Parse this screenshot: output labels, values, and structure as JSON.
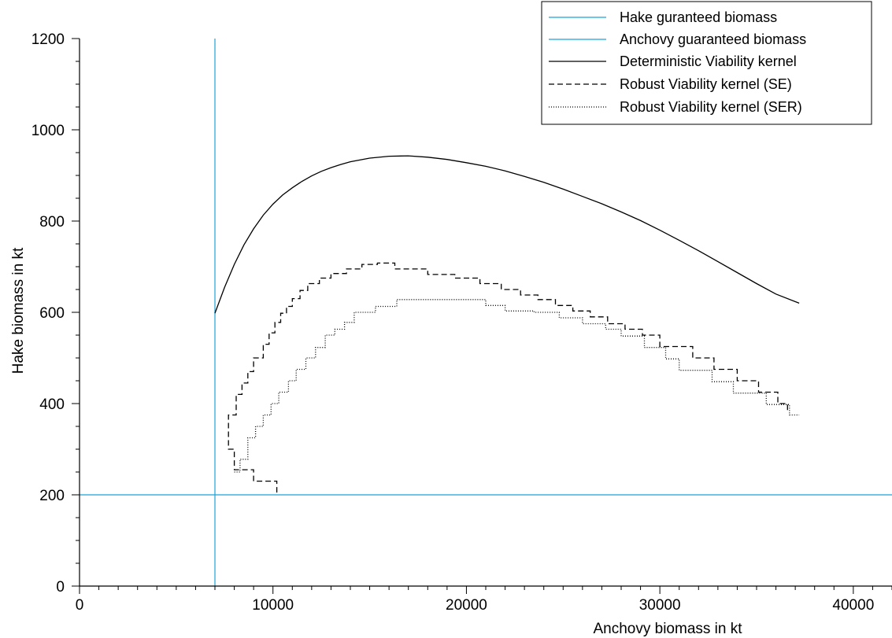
{
  "chart_data": {
    "type": "line",
    "title": "",
    "xlabel": "Anchovy biomass in kt",
    "ylabel": "Hake biomass in kt",
    "xlim": [
      0,
      42000
    ],
    "ylim": [
      0,
      1200
    ],
    "x_ticks": [
      0,
      10000,
      20000,
      30000,
      40000
    ],
    "x_tick_labels": [
      "0",
      "10000",
      "20000",
      "30000",
      "40000"
    ],
    "x_minor_step": 1000,
    "y_ticks": [
      0,
      200,
      400,
      600,
      800,
      1000,
      1200
    ],
    "y_tick_labels": [
      "0",
      "200",
      "400",
      "600",
      "800",
      "1000",
      "1200"
    ],
    "y_minor_step": 50,
    "grid": false,
    "legend_position": "top-right",
    "legend": [
      {
        "label": "Hake guranteed biomass",
        "color": "#1aa3d9",
        "style": "solid"
      },
      {
        "label": "Anchovy guaranteed biomass",
        "color": "#1aa3d9",
        "style": "solid"
      },
      {
        "label": "Deterministic Viability kernel",
        "color": "#000000",
        "style": "solid"
      },
      {
        "label": "Robust Viability kernel (SE)",
        "color": "#000000",
        "style": "dashed"
      },
      {
        "label": "Robust Viability kernel (SER)",
        "color": "#000000",
        "style": "dotted"
      }
    ],
    "hake_guaranteed_biomass": 200,
    "anchovy_guaranteed_biomass": 7000,
    "series": [
      {
        "name": "Deterministic Viability kernel",
        "style": "solid",
        "color": "#000000",
        "x": [
          7000,
          7500,
          8000,
          8500,
          9000,
          9500,
          10000,
          10500,
          11000,
          11500,
          12000,
          12500,
          13000,
          13500,
          14000,
          15000,
          16000,
          17000,
          18000,
          19000,
          20000,
          21000,
          22000,
          23000,
          24000,
          25000,
          26000,
          27000,
          28000,
          29000,
          30000,
          31000,
          32000,
          33000,
          34000,
          35000,
          36000,
          37200
        ],
        "y": [
          598,
          655,
          705,
          748,
          783,
          813,
          837,
          857,
          873,
          887,
          899,
          909,
          917,
          924,
          930,
          938,
          942,
          943,
          940,
          935,
          928,
          920,
          910,
          898,
          885,
          870,
          854,
          838,
          820,
          801,
          780,
          758,
          735,
          711,
          687,
          663,
          640,
          620
        ]
      },
      {
        "name": "Robust Viability kernel (SE)",
        "style": "dashed",
        "color": "#000000",
        "x": [
          10200,
          10200,
          9000,
          9000,
          8000,
          8000,
          7700,
          7700,
          7700,
          8100,
          8100,
          8400,
          8400,
          8700,
          8700,
          9000,
          9000,
          9500,
          9500,
          9800,
          9800,
          10100,
          10100,
          10400,
          10400,
          10700,
          10700,
          11000,
          11000,
          11400,
          11400,
          11800,
          11800,
          12400,
          12400,
          13000,
          13000,
          13800,
          13800,
          14600,
          14600,
          15400,
          15400,
          16300,
          16300,
          18000,
          18000,
          19400,
          19400,
          20700,
          20700,
          21800,
          21800,
          22800,
          22800,
          23700,
          23700,
          24600,
          24600,
          25500,
          25500,
          26400,
          26400,
          27300,
          27300,
          28200,
          28200,
          29100,
          29100,
          30000,
          30000,
          31700,
          31700,
          32800,
          32800,
          34000,
          34000,
          35100,
          35100,
          36100,
          36100,
          36600,
          36600
        ],
        "y": [
          205,
          230,
          230,
          255,
          255,
          300,
          300,
          352,
          375,
          375,
          420,
          420,
          445,
          445,
          470,
          470,
          500,
          500,
          530,
          530,
          555,
          555,
          578,
          578,
          598,
          598,
          613,
          613,
          630,
          630,
          648,
          648,
          663,
          663,
          675,
          675,
          685,
          685,
          695,
          695,
          705,
          705,
          708,
          708,
          695,
          695,
          683,
          683,
          675,
          675,
          663,
          663,
          650,
          650,
          638,
          638,
          628,
          628,
          615,
          615,
          603,
          603,
          590,
          590,
          575,
          575,
          563,
          563,
          550,
          550,
          525,
          525,
          500,
          500,
          475,
          475,
          450,
          450,
          425,
          425,
          400,
          400,
          380
        ]
      },
      {
        "name": "Robust Viability kernel (SER)",
        "style": "dotted",
        "color": "#000000",
        "x": [
          8000,
          8300,
          8300,
          8700,
          8700,
          9100,
          9100,
          9500,
          9500,
          9900,
          9900,
          10300,
          10300,
          10800,
          10800,
          11200,
          11200,
          11700,
          11700,
          12200,
          12200,
          12700,
          12700,
          13200,
          13200,
          13700,
          13700,
          14200,
          14200,
          15300,
          15300,
          16400,
          16400,
          21000,
          21000,
          22000,
          22000,
          23500,
          23500,
          24800,
          24800,
          26000,
          26000,
          27200,
          27200,
          28000,
          28000,
          29200,
          29200,
          30300,
          30300,
          31000,
          31000,
          32700,
          32700,
          33800,
          33800,
          35500,
          35500,
          36700,
          36700,
          37200
        ],
        "y": [
          250,
          250,
          278,
          278,
          325,
          325,
          350,
          350,
          375,
          375,
          400,
          400,
          425,
          425,
          450,
          450,
          475,
          475,
          500,
          500,
          523,
          523,
          550,
          550,
          563,
          563,
          578,
          578,
          600,
          600,
          613,
          613,
          628,
          628,
          615,
          615,
          603,
          603,
          600,
          600,
          588,
          588,
          575,
          575,
          563,
          563,
          548,
          548,
          523,
          523,
          498,
          498,
          473,
          473,
          448,
          448,
          423,
          423,
          398,
          398,
          375,
          375
        ]
      }
    ]
  }
}
